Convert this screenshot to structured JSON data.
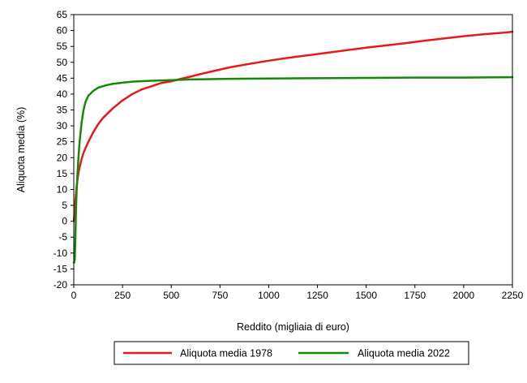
{
  "chart_data": {
    "type": "line",
    "title": "",
    "xlabel": "Reddito (migliaia di euro)",
    "ylabel": "Aliquota media (%)",
    "xlim": [
      0,
      2250
    ],
    "ylim": [
      -20,
      65
    ],
    "xticks": [
      0,
      250,
      500,
      750,
      1000,
      1250,
      1500,
      1750,
      2000,
      2250
    ],
    "yticks": [
      -20,
      -15,
      -10,
      -5,
      0,
      5,
      10,
      15,
      20,
      25,
      30,
      35,
      40,
      45,
      50,
      55,
      60,
      65
    ],
    "grid": false,
    "legend": "bottom",
    "series": [
      {
        "name": "Aliquota media 1978",
        "color": "#e8191c",
        "x": [
          0,
          3,
          6,
          10,
          15,
          20,
          25,
          30,
          40,
          50,
          60,
          75,
          100,
          125,
          150,
          175,
          200,
          250,
          300,
          350,
          400,
          450,
          500,
          550,
          600,
          650,
          700,
          750,
          800,
          900,
          1000,
          1100,
          1200,
          1300,
          1400,
          1500,
          1600,
          1700,
          1800,
          1900,
          2000,
          2100,
          2200,
          2250
        ],
        "y": [
          0,
          2,
          5,
          8,
          11,
          13.5,
          15.5,
          17,
          19.5,
          21.5,
          23,
          25,
          28,
          30.5,
          32.5,
          34,
          35.5,
          38,
          40,
          41.5,
          42.5,
          43.5,
          44,
          44.8,
          45.5,
          46.3,
          47,
          47.7,
          48.4,
          49.5,
          50.5,
          51.4,
          52.2,
          53,
          53.8,
          54.6,
          55.3,
          56,
          56.8,
          57.5,
          58.2,
          58.8,
          59.3,
          59.6
        ]
      },
      {
        "name": "Aliquota media 2022",
        "color": "#138a07",
        "x": [
          0,
          2,
          5,
          8,
          10,
          12,
          15,
          20,
          25,
          30,
          40,
          50,
          60,
          75,
          100,
          125,
          150,
          175,
          200,
          250,
          300,
          400,
          500,
          600,
          700,
          800,
          1000,
          1250,
          1500,
          1750,
          2000,
          2250
        ],
        "y": [
          -13,
          -13,
          -12,
          -6,
          0,
          5,
          10,
          16,
          21,
          25,
          31,
          35,
          37.5,
          39.5,
          41,
          42,
          42.5,
          42.9,
          43.2,
          43.6,
          43.9,
          44.2,
          44.4,
          44.6,
          44.7,
          44.8,
          44.9,
          45,
          45.1,
          45.2,
          45.2,
          45.3
        ]
      }
    ]
  }
}
